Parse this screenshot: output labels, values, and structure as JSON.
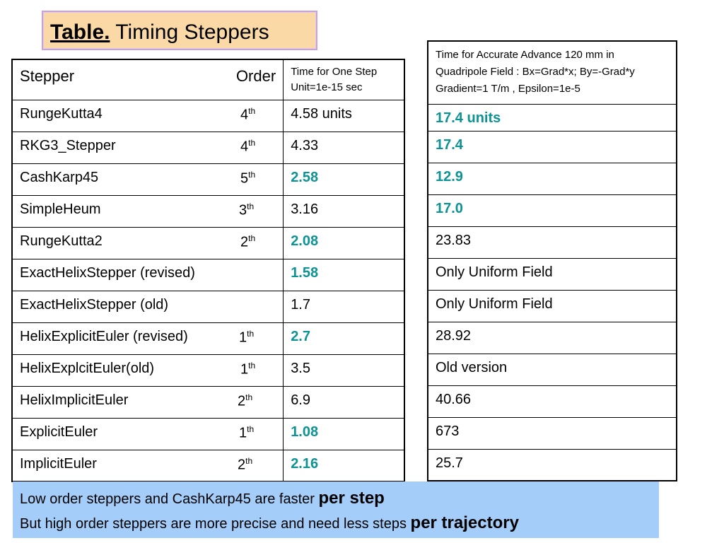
{
  "title": {
    "prefix": "Table.",
    "text": "Timing Steppers"
  },
  "left_table": {
    "header": {
      "stepper": "Stepper",
      "order": "Order",
      "time_line1": "Time for One Step",
      "time_line2": "Unit=1e-15 sec"
    },
    "rows": [
      {
        "name": "RungeKutta4",
        "order": "4",
        "sup": "th",
        "time": "4.58 units",
        "highlight": false
      },
      {
        "name": "RKG3_Stepper",
        "order": "4",
        "sup": "th",
        "time": "4.33",
        "highlight": false
      },
      {
        "name": "CashKarp45",
        "order": "5",
        "sup": "th",
        "time": "2.58",
        "highlight": true
      },
      {
        "name": "SimpleHeum",
        "order": "3",
        "sup": "th",
        "time": "3.16",
        "highlight": false
      },
      {
        "name": "RungeKutta2",
        "order": "2",
        "sup": "th",
        "time": "2.08",
        "highlight": true
      },
      {
        "name": "ExactHelixStepper (revised)",
        "order": "",
        "sup": "",
        "time": "1.58",
        "highlight": true
      },
      {
        "name": "ExactHelixStepper (old)",
        "order": "",
        "sup": "",
        "time": "1.7",
        "highlight": false
      },
      {
        "name": "HelixExplicitEuler (revised)",
        "order": "1",
        "sup": "th",
        "time": "2.7",
        "highlight": true
      },
      {
        "name": "HelixExplcitEuler(old)",
        "order": "1",
        "sup": "th",
        "time": "3.5",
        "highlight": false
      },
      {
        "name": "HelixImplicitEuler",
        "order": "2",
        "sup": "th",
        "time": "6.9",
        "highlight": false
      },
      {
        "name": "ExplicitEuler",
        "order": "1",
        "sup": "th",
        "time": "1.08",
        "highlight": true
      },
      {
        "name": "ImplicitEuler",
        "order": "2",
        "sup": "th",
        "time": "2.16",
        "highlight": true
      }
    ]
  },
  "right_table": {
    "header": {
      "line1": "Time for Accurate Advance 120 mm  in",
      "line2": "Quadripole Field : Bx=Grad*x; By=-Grad*y",
      "line3": "Gradient=1 T/m  , Epsilon=1e-5"
    },
    "rows": [
      {
        "text": "17.4 units",
        "highlight": true
      },
      {
        "text": "17.4",
        "highlight": true
      },
      {
        "text": "12.9",
        "highlight": true
      },
      {
        "text": "17.0",
        "highlight": true
      },
      {
        "text": "23.83",
        "highlight": false
      },
      {
        "text": "Only Uniform Field",
        "highlight": false
      },
      {
        "text": "Only Uniform Field",
        "highlight": false
      },
      {
        "text": "28.92",
        "highlight": false
      },
      {
        "text": "Old version",
        "highlight": false
      },
      {
        "text": "40.66",
        "highlight": false
      },
      {
        "text": "673",
        "highlight": false
      },
      {
        "text": "25.7",
        "highlight": false
      }
    ]
  },
  "note": {
    "line1_text": "Low order steppers and CashKarp45 are faster ",
    "line1_bold": "per step",
    "line2_text": "But high order steppers are more precise and need less steps ",
    "line2_bold": "per trajectory"
  },
  "colors": {
    "highlight": "#0d9394",
    "title_bg": "#fbd9a6",
    "note_bg": "#a5cdfa"
  }
}
